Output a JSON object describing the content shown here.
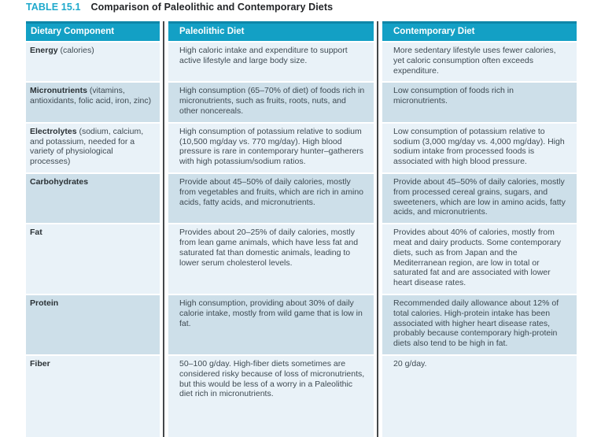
{
  "title": {
    "number": "TABLE 15.1",
    "caption": "Comparison of Paleolithic and Contemporary Diets"
  },
  "colors": {
    "header_bg": "#13a0c5",
    "header_top_border": "#0e86a8",
    "row_light": "#e9f2f8",
    "row_dark": "#cddfe9",
    "column_divider": "#45484a",
    "title_accent": "#1ea9cc",
    "body_text": "#3e4a52",
    "header_text": "#ffffff"
  },
  "table": {
    "columns": [
      "Dietary Component",
      "Paleolithic Diet",
      "Contemporary Diet"
    ],
    "rows": [
      {
        "component": "Energy",
        "note": " (calories)",
        "paleolithic": "High caloric intake and expenditure to support active lifestyle and large body size.",
        "contemporary": "More sedentary lifestyle uses fewer calories, yet caloric consumption often exceeds expenditure."
      },
      {
        "component": "Micronutrients",
        "note": " (vitamins, antioxidants, folic acid, iron, zinc)",
        "paleolithic": "High consumption (65–70% of diet) of foods rich in micronutrients, such as fruits, roots, nuts, and other noncereals.",
        "contemporary": "Low consumption of foods rich in micronutrients."
      },
      {
        "component": "Electrolytes",
        "note": " (sodium, calcium, and potassium, needed for a variety of physiological processes)",
        "paleolithic": "High consumption of potassium relative to sodium (10,500 mg/day vs. 770 mg/day). High blood pressure is rare in contemporary hunter–gatherers with high potassium/sodium ratios.",
        "contemporary": "Low consumption of potassium relative to sodium (3,000 mg/day vs. 4,000 mg/day). High sodium intake from processed foods is associated with high blood pressure."
      },
      {
        "component": "Carbohydrates",
        "note": "",
        "paleolithic": "Provide about 45–50% of daily calories, mostly from vegetables and fruits, which are rich in amino acids, fatty acids, and micronutrients.",
        "contemporary": "Provide about 45–50% of daily calories, mostly from processed cereal grains, sugars, and sweeteners, which are low in amino acids, fatty acids, and micronutrients."
      },
      {
        "component": "Fat",
        "note": "",
        "paleolithic": "Provides about 20–25% of daily calories, mostly from lean game animals, which have less fat and saturated fat than domestic animals, leading to lower serum cholesterol levels.",
        "contemporary": "Provides about 40% of calories, mostly from meat and dairy products. Some contemporary diets, such as from Japan and the Mediterranean region, are low in total or saturated fat and are associated with lower heart disease rates."
      },
      {
        "component": "Protein",
        "note": "",
        "paleolithic": "High consumption, providing about 30% of daily calorie intake, mostly from wild game that is low in fat.",
        "contemporary": "Recommended daily allowance about 12% of total calories. High-protein intake has been associated with higher heart disease rates, probably because contemporary high-protein diets also tend to be high in fat."
      },
      {
        "component": "Fiber",
        "note": "",
        "paleolithic": "50–100 g/day. High-fiber diets sometimes are considered risky because of loss of micronutrients, but this would be less of a worry in a Paleolithic diet rich in micronutrients.",
        "contemporary": "20 g/day."
      }
    ]
  }
}
